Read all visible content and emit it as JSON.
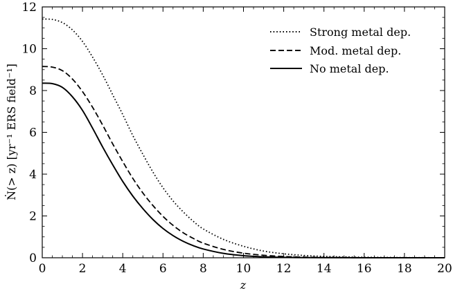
{
  "chart_data": {
    "type": "line",
    "title": "",
    "xlabel": "z",
    "ylabel": "Ṅ(> z) [yr⁻¹ ERS field⁻¹]",
    "xlim": [
      0,
      20
    ],
    "ylim": [
      0,
      12
    ],
    "xticks": [
      0,
      2,
      4,
      6,
      8,
      10,
      12,
      14,
      16,
      18,
      20
    ],
    "yticks": [
      0,
      2,
      4,
      6,
      8,
      10,
      12
    ],
    "grid": false,
    "legend_position": "top-right",
    "series": [
      {
        "name": "Strong metal dep.",
        "style": "dotted",
        "x": [
          0,
          0.5,
          1,
          1.5,
          2,
          2.5,
          3,
          3.5,
          4,
          4.5,
          5,
          5.5,
          6,
          6.5,
          7,
          7.5,
          8,
          9,
          10,
          11,
          12,
          13,
          14,
          15,
          16,
          18,
          20
        ],
        "y": [
          11.42,
          11.4,
          11.25,
          10.9,
          10.35,
          9.6,
          8.75,
          7.8,
          6.85,
          5.85,
          4.95,
          4.1,
          3.35,
          2.72,
          2.2,
          1.75,
          1.38,
          0.88,
          0.55,
          0.32,
          0.19,
          0.11,
          0.065,
          0.04,
          0.025,
          0.01,
          0.003
        ]
      },
      {
        "name": "Mod. metal dep.",
        "style": "dashed",
        "x": [
          0,
          0.5,
          1,
          1.5,
          2,
          2.5,
          3,
          3.5,
          4,
          4.5,
          5,
          5.5,
          6,
          6.5,
          7,
          7.5,
          8,
          9,
          10,
          11,
          12,
          13,
          14,
          16,
          18,
          20
        ],
        "y": [
          9.15,
          9.12,
          8.95,
          8.55,
          7.95,
          7.2,
          6.35,
          5.45,
          4.6,
          3.8,
          3.1,
          2.5,
          1.98,
          1.55,
          1.2,
          0.93,
          0.7,
          0.4,
          0.22,
          0.12,
          0.06,
          0.03,
          0.015,
          0.005,
          0.002,
          0.001
        ]
      },
      {
        "name": "No metal dep.",
        "style": "solid",
        "x": [
          0,
          0.5,
          1,
          1.5,
          2,
          2.5,
          3,
          3.5,
          4,
          4.5,
          5,
          5.5,
          6,
          6.5,
          7,
          7.5,
          8,
          9,
          10,
          11,
          12,
          13,
          14,
          16,
          18,
          20
        ],
        "y": [
          8.35,
          8.33,
          8.15,
          7.7,
          7.05,
          6.2,
          5.3,
          4.45,
          3.65,
          2.95,
          2.35,
          1.83,
          1.4,
          1.06,
          0.79,
          0.58,
          0.42,
          0.21,
          0.1,
          0.045,
          0.02,
          0.01,
          0.005,
          0.001,
          0.0,
          0.0
        ]
      }
    ]
  }
}
